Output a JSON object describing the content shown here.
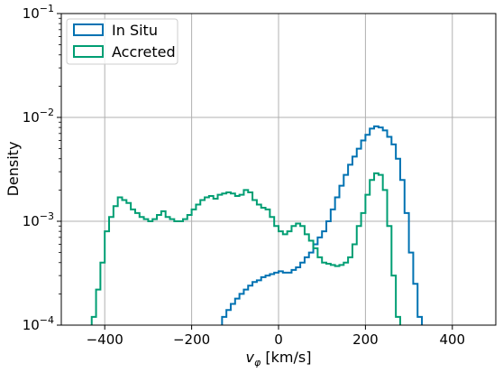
{
  "chart_data": {
    "type": "histogram-step",
    "xlabel_main": "v",
    "xlabel_sub": "φ",
    "xlabel_unit": " [km/s]",
    "ylabel": "Density",
    "xlim": [
      -500,
      500
    ],
    "ylim": [
      0.0001,
      0.1
    ],
    "yscale": "log",
    "grid": true,
    "legend_position": "upper-left",
    "x_ticks": [
      -400,
      -200,
      0,
      200,
      400
    ],
    "x_tick_labels": [
      "−400",
      "−200",
      "0",
      "200",
      "400"
    ],
    "y_ticks": [
      {
        "value": 0.0001,
        "base": "10",
        "exp": "−4"
      },
      {
        "value": 0.001,
        "base": "10",
        "exp": "−3"
      },
      {
        "value": 0.01,
        "base": "10",
        "exp": "−2"
      },
      {
        "value": 0.1,
        "base": "10",
        "exp": "−1"
      }
    ],
    "bin_width": 10,
    "series": [
      {
        "name": "In Situ",
        "color": "#0072B2",
        "x_start": -130,
        "values": [
          0.00012,
          0.00014,
          0.00016,
          0.00018,
          0.0002,
          0.00022,
          0.00024,
          0.00026,
          0.00027,
          0.00029,
          0.0003,
          0.00031,
          0.00032,
          0.00033,
          0.00032,
          0.00032,
          0.00034,
          0.00036,
          0.0004,
          0.00045,
          0.0005,
          0.0006,
          0.0007,
          0.0008,
          0.001,
          0.0013,
          0.0017,
          0.0022,
          0.0028,
          0.0035,
          0.0042,
          0.005,
          0.006,
          0.0068,
          0.0078,
          0.0082,
          0.008,
          0.0075,
          0.0065,
          0.0055,
          0.004,
          0.0025,
          0.0012,
          0.0005,
          0.00025,
          0.00012
        ]
      },
      {
        "name": "Accreted",
        "color": "#009E73",
        "x_start": -430,
        "values": [
          0.00012,
          0.00022,
          0.0004,
          0.0008,
          0.0011,
          0.0014,
          0.0017,
          0.0016,
          0.0015,
          0.0013,
          0.0012,
          0.0011,
          0.00105,
          0.001,
          0.00105,
          0.00115,
          0.00125,
          0.0011,
          0.00105,
          0.001,
          0.001,
          0.00105,
          0.00115,
          0.0013,
          0.00145,
          0.0016,
          0.0017,
          0.00175,
          0.00165,
          0.0018,
          0.00185,
          0.0019,
          0.00185,
          0.00175,
          0.0018,
          0.002,
          0.0019,
          0.0016,
          0.00145,
          0.00135,
          0.0013,
          0.0011,
          0.0009,
          0.0008,
          0.00075,
          0.0008,
          0.0009,
          0.00095,
          0.0009,
          0.00075,
          0.00065,
          0.00055,
          0.00045,
          0.0004,
          0.00039,
          0.00038,
          0.00037,
          0.00038,
          0.0004,
          0.00045,
          0.0006,
          0.0009,
          0.0012,
          0.0018,
          0.0025,
          0.0029,
          0.0028,
          0.002,
          0.0009,
          0.0003,
          0.00012
        ]
      }
    ]
  }
}
